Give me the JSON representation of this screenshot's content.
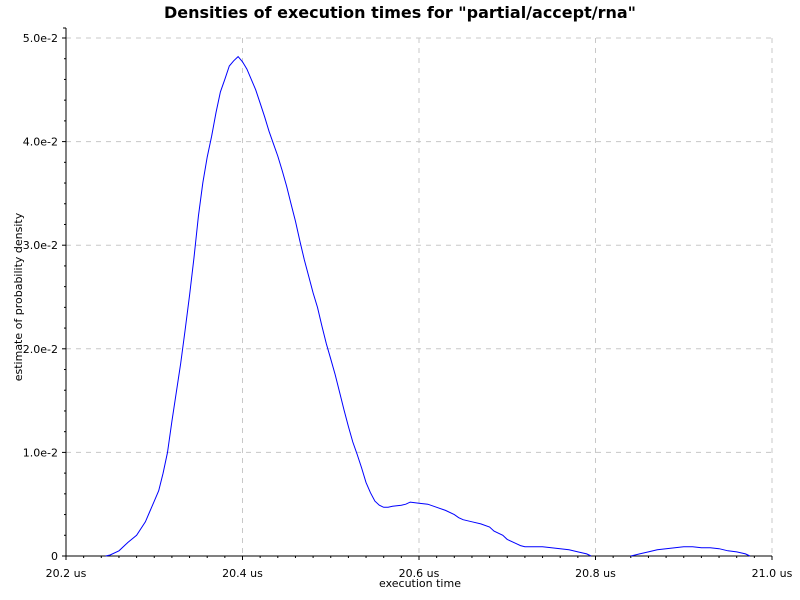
{
  "chart_data": {
    "type": "line",
    "title": "Densities of execution times for \"partial/accept/rna\"",
    "xlabel": "execution time",
    "ylabel": "estimate of probability density",
    "xlim": [
      20.2,
      21.0
    ],
    "ylim": [
      0,
      0.05
    ],
    "x_ticks": [
      {
        "value": 20.2,
        "label": "20.2 us"
      },
      {
        "value": 20.4,
        "label": "20.4 us"
      },
      {
        "value": 20.6,
        "label": "20.6 us"
      },
      {
        "value": 20.8,
        "label": "20.8 us"
      },
      {
        "value": 21.0,
        "label": "21.0 us"
      }
    ],
    "y_ticks": [
      {
        "value": 0,
        "label": "0"
      },
      {
        "value": 0.01,
        "label": "1.0e-2"
      },
      {
        "value": 0.02,
        "label": "2.0e-2"
      },
      {
        "value": 0.03,
        "label": "3.0e-2"
      },
      {
        "value": 0.04,
        "label": "4.0e-2"
      },
      {
        "value": 0.05,
        "label": "5.0e-2"
      }
    ],
    "grid": true,
    "line_color": "#0000ff",
    "series": [
      {
        "points": [
          [
            20.245,
            0.0
          ],
          [
            20.25,
            0.0001
          ],
          [
            20.26,
            0.0005
          ],
          [
            20.27,
            0.0013
          ],
          [
            20.28,
            0.002
          ],
          [
            20.29,
            0.0033
          ],
          [
            20.295,
            0.0043
          ],
          [
            20.3,
            0.0053
          ],
          [
            20.305,
            0.0063
          ],
          [
            20.31,
            0.008
          ],
          [
            20.315,
            0.01
          ],
          [
            20.32,
            0.013
          ],
          [
            20.325,
            0.0158
          ],
          [
            20.33,
            0.0186
          ],
          [
            20.335,
            0.0218
          ],
          [
            20.34,
            0.0252
          ],
          [
            20.345,
            0.0288
          ],
          [
            20.35,
            0.0328
          ],
          [
            20.355,
            0.036
          ],
          [
            20.36,
            0.0385
          ],
          [
            20.365,
            0.0405
          ],
          [
            20.37,
            0.0428
          ],
          [
            20.375,
            0.0448
          ],
          [
            20.38,
            0.046
          ],
          [
            20.385,
            0.0473
          ],
          [
            20.39,
            0.0478
          ],
          [
            20.395,
            0.0482
          ],
          [
            20.4,
            0.0477
          ],
          [
            20.405,
            0.047
          ],
          [
            20.41,
            0.046
          ],
          [
            20.415,
            0.045
          ],
          [
            20.42,
            0.0437
          ],
          [
            20.425,
            0.0424
          ],
          [
            20.43,
            0.041
          ],
          [
            20.435,
            0.0398
          ],
          [
            20.44,
            0.0386
          ],
          [
            20.445,
            0.0372
          ],
          [
            20.45,
            0.0357
          ],
          [
            20.455,
            0.034
          ],
          [
            20.46,
            0.0323
          ],
          [
            20.465,
            0.0304
          ],
          [
            20.47,
            0.0286
          ],
          [
            20.475,
            0.027
          ],
          [
            20.48,
            0.0254
          ],
          [
            20.485,
            0.024
          ],
          [
            20.49,
            0.0222
          ],
          [
            20.495,
            0.0205
          ],
          [
            20.5,
            0.019
          ],
          [
            20.505,
            0.0175
          ],
          [
            20.51,
            0.0158
          ],
          [
            20.515,
            0.0141
          ],
          [
            20.52,
            0.0125
          ],
          [
            20.525,
            0.011
          ],
          [
            20.53,
            0.0098
          ],
          [
            20.535,
            0.0085
          ],
          [
            20.54,
            0.0071
          ],
          [
            20.545,
            0.0061
          ],
          [
            20.55,
            0.0053
          ],
          [
            20.555,
            0.0049
          ],
          [
            20.56,
            0.0047
          ],
          [
            20.565,
            0.0047
          ],
          [
            20.57,
            0.0048
          ],
          [
            20.58,
            0.0049
          ],
          [
            20.585,
            0.005
          ],
          [
            20.59,
            0.0052
          ],
          [
            20.6,
            0.0051
          ],
          [
            20.61,
            0.005
          ],
          [
            20.62,
            0.0047
          ],
          [
            20.63,
            0.0044
          ],
          [
            20.64,
            0.004
          ],
          [
            20.645,
            0.0037
          ],
          [
            20.65,
            0.0035
          ],
          [
            20.66,
            0.0033
          ],
          [
            20.67,
            0.0031
          ],
          [
            20.68,
            0.0028
          ],
          [
            20.685,
            0.0024
          ],
          [
            20.695,
            0.002
          ],
          [
            20.7,
            0.0016
          ],
          [
            20.71,
            0.0012
          ],
          [
            20.715,
            0.001
          ],
          [
            20.72,
            0.0009
          ],
          [
            20.73,
            0.0009
          ],
          [
            20.74,
            0.0009
          ],
          [
            20.75,
            0.0008
          ],
          [
            20.76,
            0.0007
          ],
          [
            20.77,
            0.0006
          ],
          [
            20.78,
            0.0004
          ],
          [
            20.79,
            0.0002
          ],
          [
            20.795,
            0.0
          ]
        ]
      },
      {
        "points": [
          [
            20.84,
            0.0
          ],
          [
            20.85,
            0.0002
          ],
          [
            20.86,
            0.0004
          ],
          [
            20.87,
            0.0006
          ],
          [
            20.88,
            0.0007
          ],
          [
            20.89,
            0.0008
          ],
          [
            20.9,
            0.0009
          ],
          [
            20.91,
            0.0009
          ],
          [
            20.92,
            0.0008
          ],
          [
            20.93,
            0.0008
          ],
          [
            20.94,
            0.0007
          ],
          [
            20.95,
            0.0005
          ],
          [
            20.96,
            0.0004
          ],
          [
            20.97,
            0.0002
          ],
          [
            20.975,
            0.0
          ]
        ]
      }
    ]
  }
}
